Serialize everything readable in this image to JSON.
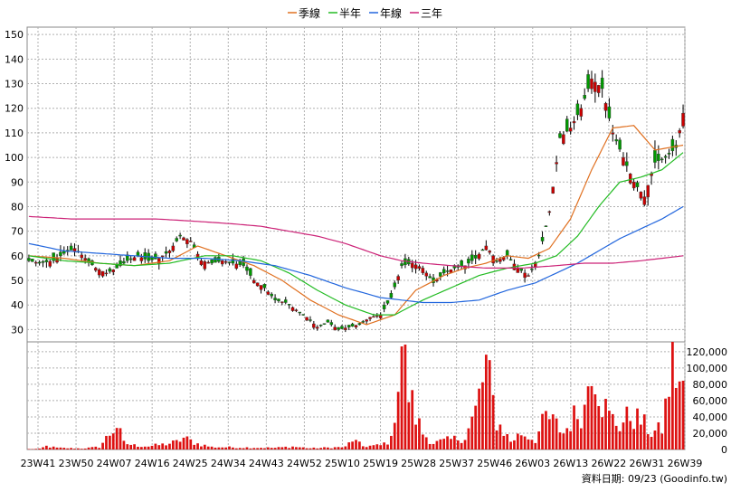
{
  "chart_data": {
    "type": "candlestick",
    "legend": [
      {
        "name": "季線",
        "color": "#e07020"
      },
      {
        "name": "半年",
        "color": "#22bb22"
      },
      {
        "name": "年線",
        "color": "#2266dd"
      },
      {
        "name": "三年",
        "color": "#cc2277"
      }
    ],
    "colors": {
      "up": "#cc0000",
      "down": "#009900",
      "wick": "#000000",
      "volume": "#dd1111",
      "grid": "#b0b0b0"
    },
    "price_axis": {
      "ticks": [
        30,
        40,
        50,
        60,
        70,
        80,
        90,
        100,
        110,
        120,
        130,
        140,
        150
      ],
      "ylim": [
        25,
        153
      ]
    },
    "volume_axis": {
      "ticks": [
        0,
        20000,
        40000,
        60000,
        80000,
        100000,
        120000
      ],
      "tick_labels": [
        "0",
        "20,000",
        "40,000",
        "60,000",
        "80,000",
        "100,000",
        "120,000"
      ],
      "ylim": [
        0,
        132000
      ]
    },
    "x_ticks": [
      "23W41",
      "23W50",
      "24W07",
      "24W16",
      "24W25",
      "24W34",
      "24W43",
      "24W52",
      "25W10",
      "25W19",
      "25W28",
      "25W37",
      "25W46",
      "26W03",
      "26W13",
      "26W22",
      "26W31",
      "26W39"
    ],
    "close_anchors": [
      [
        0,
        58
      ],
      [
        3,
        57
      ],
      [
        7,
        58
      ],
      [
        10,
        61
      ],
      [
        13,
        63
      ],
      [
        16,
        59
      ],
      [
        19,
        55
      ],
      [
        22,
        53
      ],
      [
        25,
        55
      ],
      [
        28,
        58
      ],
      [
        31,
        60
      ],
      [
        34,
        58
      ],
      [
        37,
        59
      ],
      [
        40,
        62
      ],
      [
        43,
        68
      ],
      [
        46,
        66
      ],
      [
        49,
        58
      ],
      [
        52,
        57
      ],
      [
        55,
        58
      ],
      [
        58,
        57
      ],
      [
        61,
        56
      ],
      [
        64,
        50
      ],
      [
        67,
        47
      ],
      [
        70,
        42
      ],
      [
        73,
        41
      ],
      [
        76,
        38
      ],
      [
        79,
        35
      ],
      [
        82,
        31
      ],
      [
        85,
        33
      ],
      [
        88,
        30
      ],
      [
        91,
        31
      ],
      [
        94,
        32
      ],
      [
        97,
        35
      ],
      [
        100,
        36
      ],
      [
        103,
        43
      ],
      [
        106,
        56
      ],
      [
        109,
        57
      ],
      [
        112,
        55
      ],
      [
        115,
        49
      ],
      [
        118,
        53
      ],
      [
        121,
        55
      ],
      [
        124,
        56
      ],
      [
        127,
        59
      ],
      [
        130,
        64
      ],
      [
        133,
        58
      ],
      [
        136,
        60
      ],
      [
        139,
        55
      ],
      [
        142,
        52
      ],
      [
        145,
        60
      ],
      [
        148,
        78
      ],
      [
        151,
        108
      ],
      [
        154,
        112
      ],
      [
        157,
        120
      ],
      [
        160,
        132
      ],
      [
        163,
        128
      ],
      [
        166,
        110
      ],
      [
        169,
        100
      ],
      [
        172,
        90
      ],
      [
        175,
        84
      ],
      [
        178,
        98
      ],
      [
        181,
        100
      ],
      [
        184,
        104
      ],
      [
        186,
        118
      ]
    ],
    "volume_anchors": [
      [
        0,
        500
      ],
      [
        3,
        800
      ],
      [
        5,
        4000
      ],
      [
        8,
        2000
      ],
      [
        12,
        1500
      ],
      [
        15,
        1200
      ],
      [
        20,
        3000
      ],
      [
        25,
        30000
      ],
      [
        27,
        8000
      ],
      [
        30,
        5000
      ],
      [
        34,
        4000
      ],
      [
        38,
        6000
      ],
      [
        42,
        9000
      ],
      [
        44,
        14000
      ],
      [
        48,
        7000
      ],
      [
        52,
        3000
      ],
      [
        60,
        2500
      ],
      [
        70,
        2000
      ],
      [
        75,
        3500
      ],
      [
        80,
        1500
      ],
      [
        90,
        3000
      ],
      [
        92,
        12000
      ],
      [
        95,
        4000
      ],
      [
        100,
        5000
      ],
      [
        103,
        12000
      ],
      [
        106,
        132000
      ],
      [
        108,
        70000
      ],
      [
        110,
        40000
      ],
      [
        112,
        20000
      ],
      [
        115,
        8000
      ],
      [
        120,
        12000
      ],
      [
        124,
        15000
      ],
      [
        127,
        46000
      ],
      [
        130,
        102000
      ],
      [
        133,
        35000
      ],
      [
        137,
        10000
      ],
      [
        140,
        20000
      ],
      [
        144,
        12000
      ],
      [
        147,
        40000
      ],
      [
        150,
        30000
      ],
      [
        152,
        20000
      ],
      [
        155,
        40000
      ],
      [
        158,
        50000
      ],
      [
        160,
        122000
      ],
      [
        163,
        60000
      ],
      [
        165,
        40000
      ],
      [
        168,
        30000
      ],
      [
        171,
        42000
      ],
      [
        174,
        35000
      ],
      [
        177,
        20000
      ],
      [
        180,
        25000
      ],
      [
        183,
        105000
      ],
      [
        186,
        70000
      ]
    ],
    "ma_anchors": {
      "季線": [
        [
          0,
          60
        ],
        [
          10,
          59
        ],
        [
          20,
          57
        ],
        [
          30,
          56
        ],
        [
          40,
          58
        ],
        [
          48,
          64
        ],
        [
          56,
          60
        ],
        [
          64,
          56
        ],
        [
          72,
          50
        ],
        [
          80,
          42
        ],
        [
          88,
          36
        ],
        [
          96,
          32
        ],
        [
          104,
          36
        ],
        [
          110,
          46
        ],
        [
          118,
          52
        ],
        [
          124,
          55
        ],
        [
          130,
          57
        ],
        [
          136,
          60
        ],
        [
          142,
          59
        ],
        [
          148,
          63
        ],
        [
          154,
          75
        ],
        [
          160,
          95
        ],
        [
          166,
          112
        ],
        [
          172,
          113
        ],
        [
          178,
          103
        ],
        [
          186,
          105
        ]
      ],
      "半年": [
        [
          0,
          60
        ],
        [
          10,
          58
        ],
        [
          20,
          57
        ],
        [
          30,
          56
        ],
        [
          40,
          57
        ],
        [
          50,
          60
        ],
        [
          58,
          60
        ],
        [
          66,
          58
        ],
        [
          74,
          53
        ],
        [
          82,
          46
        ],
        [
          90,
          40
        ],
        [
          98,
          36
        ],
        [
          104,
          36
        ],
        [
          112,
          42
        ],
        [
          120,
          47
        ],
        [
          128,
          52
        ],
        [
          136,
          55
        ],
        [
          144,
          57
        ],
        [
          150,
          60
        ],
        [
          156,
          68
        ],
        [
          162,
          80
        ],
        [
          168,
          90
        ],
        [
          174,
          92
        ],
        [
          180,
          95
        ],
        [
          186,
          102
        ]
      ],
      "年線": [
        [
          0,
          65
        ],
        [
          10,
          62
        ],
        [
          20,
          61
        ],
        [
          30,
          60
        ],
        [
          40,
          59
        ],
        [
          50,
          59
        ],
        [
          60,
          58
        ],
        [
          70,
          56
        ],
        [
          80,
          52
        ],
        [
          90,
          47
        ],
        [
          100,
          43
        ],
        [
          106,
          42
        ],
        [
          112,
          41
        ],
        [
          120,
          41
        ],
        [
          128,
          42
        ],
        [
          136,
          46
        ],
        [
          144,
          49
        ],
        [
          150,
          53
        ],
        [
          156,
          57
        ],
        [
          162,
          62
        ],
        [
          168,
          67
        ],
        [
          174,
          71
        ],
        [
          180,
          75
        ],
        [
          186,
          80
        ]
      ],
      "三年": [
        [
          0,
          76
        ],
        [
          12,
          75
        ],
        [
          24,
          75
        ],
        [
          36,
          75
        ],
        [
          48,
          74
        ],
        [
          58,
          73
        ],
        [
          66,
          72
        ],
        [
          74,
          70
        ],
        [
          82,
          68
        ],
        [
          90,
          65
        ],
        [
          100,
          60
        ],
        [
          106,
          58
        ],
        [
          112,
          57
        ],
        [
          120,
          56
        ],
        [
          130,
          55
        ],
        [
          140,
          55
        ],
        [
          150,
          56
        ],
        [
          158,
          57
        ],
        [
          166,
          57
        ],
        [
          174,
          58
        ],
        [
          180,
          59
        ],
        [
          186,
          60
        ]
      ]
    },
    "footer": "資料日期: 09/23  (Goodinfo.tw)"
  }
}
